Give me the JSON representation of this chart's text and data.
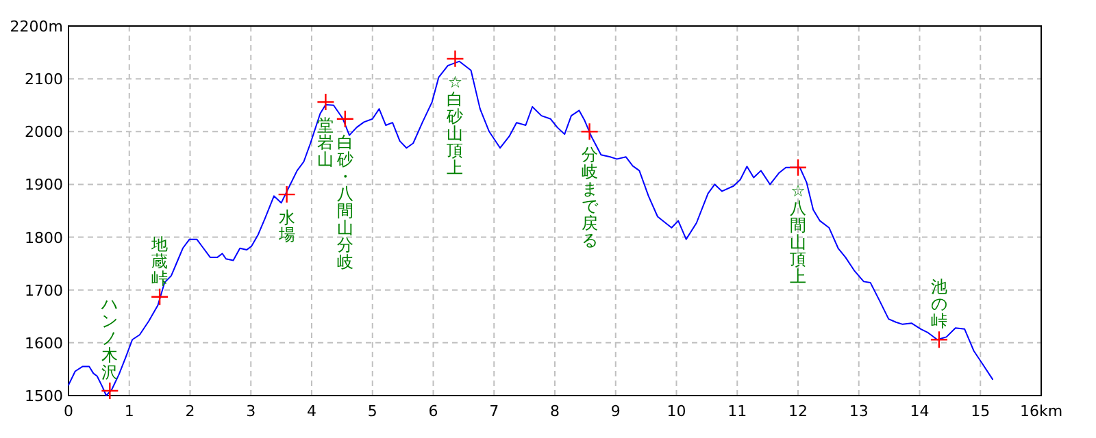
{
  "chart_data": {
    "type": "line",
    "xlim": [
      0,
      16
    ],
    "ylim": [
      1500,
      2200
    ],
    "xticks": [
      0,
      1,
      2,
      3,
      4,
      5,
      6,
      7,
      8,
      9,
      10,
      11,
      12,
      13,
      14,
      15,
      {
        "value": 16,
        "label": "16km"
      }
    ],
    "yticks": [
      1500,
      1600,
      1700,
      1800,
      1900,
      2000,
      2100,
      {
        "value": 2200,
        "label": "2200m"
      }
    ],
    "grid": true,
    "series": [
      {
        "color": "#0000ff",
        "line_style": "solid",
        "marker": "none",
        "x": [
          0,
          0.11,
          0.23,
          0.34,
          0.41,
          0.47,
          0.56,
          0.62,
          0.71,
          0.83,
          0.94,
          1.05,
          1.17,
          1.32,
          1.47,
          1.58,
          1.69,
          1.8,
          1.88,
          1.99,
          2.11,
          2.22,
          2.33,
          2.45,
          2.53,
          2.59,
          2.71,
          2.82,
          2.93,
          3.01,
          3.12,
          3.23,
          3.38,
          3.5,
          3.61,
          3.76,
          3.87,
          3.98,
          4.14,
          4.23,
          4.36,
          4.51,
          4.62,
          4.74,
          4.86,
          5.0,
          5.11,
          5.22,
          5.33,
          5.45,
          5.56,
          5.67,
          5.82,
          5.98,
          6.09,
          6.24,
          6.43,
          6.62,
          6.77,
          6.92,
          7.1,
          7.25,
          7.37,
          7.52,
          7.63,
          7.78,
          7.93,
          8.04,
          8.16,
          8.27,
          8.4,
          8.49,
          8.6,
          8.76,
          8.91,
          9.02,
          9.17,
          9.28,
          9.39,
          9.54,
          9.69,
          9.92,
          10.03,
          10.16,
          10.33,
          10.52,
          10.63,
          10.75,
          10.94,
          11.05,
          11.16,
          11.27,
          11.39,
          11.54,
          11.69,
          11.8,
          12.03,
          12.14,
          12.25,
          12.36,
          12.51,
          12.66,
          12.78,
          12.93,
          13.08,
          13.19,
          13.34,
          13.49,
          13.61,
          13.72,
          13.87,
          14.02,
          14.14,
          14.29,
          14.44,
          14.59,
          14.74,
          14.89,
          15.04,
          15.2
        ],
        "values": [
          1520,
          1546,
          1555,
          1555,
          1542,
          1537,
          1516,
          1500,
          1511,
          1540,
          1572,
          1606,
          1615,
          1641,
          1671,
          1714,
          1727,
          1757,
          1779,
          1796,
          1796,
          1779,
          1762,
          1762,
          1769,
          1759,
          1756,
          1779,
          1776,
          1783,
          1805,
          1835,
          1878,
          1865,
          1891,
          1926,
          1943,
          1978,
          2034,
          2051,
          2050,
          2025,
          1993,
          2008,
          2018,
          2024,
          2043,
          2012,
          2017,
          1982,
          1969,
          1978,
          2017,
          2056,
          2103,
          2125,
          2133,
          2116,
          2043,
          2000,
          1969,
          1991,
          2017,
          2012,
          2047,
          2030,
          2024,
          2008,
          1995,
          2030,
          2040,
          2021,
          1991,
          1956,
          1952,
          1948,
          1952,
          1935,
          1926,
          1878,
          1839,
          1818,
          1831,
          1796,
          1827,
          1883,
          1900,
          1887,
          1897,
          1909,
          1934,
          1913,
          1926,
          1900,
          1922,
          1932,
          1932,
          1904,
          1852,
          1831,
          1818,
          1779,
          1762,
          1736,
          1716,
          1714,
          1680,
          1645,
          1639,
          1635,
          1637,
          1626,
          1619,
          1606,
          1611,
          1628,
          1626,
          1585,
          1559,
          1531
        ]
      },
      {
        "type": "scatter",
        "color": "#ff0000",
        "marker": "cross",
        "x": [
          0.68,
          1.5,
          3.59,
          4.23,
          4.55,
          6.36,
          8.57,
          12.0,
          14.32
        ],
        "values": [
          1509,
          1687,
          1881,
          2056,
          2024,
          2138,
          2000,
          1932,
          1606
        ]
      }
    ],
    "annotations": [
      {
        "text": "ハンノ木沢",
        "x": 0.68,
        "y": 1509
      },
      {
        "text": "地蔵峠",
        "x": 1.5,
        "y": 1687
      },
      {
        "text": "水場",
        "x": 3.59,
        "y": 1881
      },
      {
        "text": "堂岩山",
        "x": 4.23,
        "y": 2056
      },
      {
        "text": "白砂・八間山分岐",
        "x": 4.55,
        "y": 2024
      },
      {
        "text": "☆白砂山頂上",
        "x": 6.36,
        "y": 2138
      },
      {
        "text": "分岐まで戻る",
        "x": 8.57,
        "y": 2000
      },
      {
        "text": "☆八間山頂上",
        "x": 12.0,
        "y": 1932
      },
      {
        "text": "池の峠",
        "x": 14.32,
        "y": 1606
      }
    ]
  }
}
